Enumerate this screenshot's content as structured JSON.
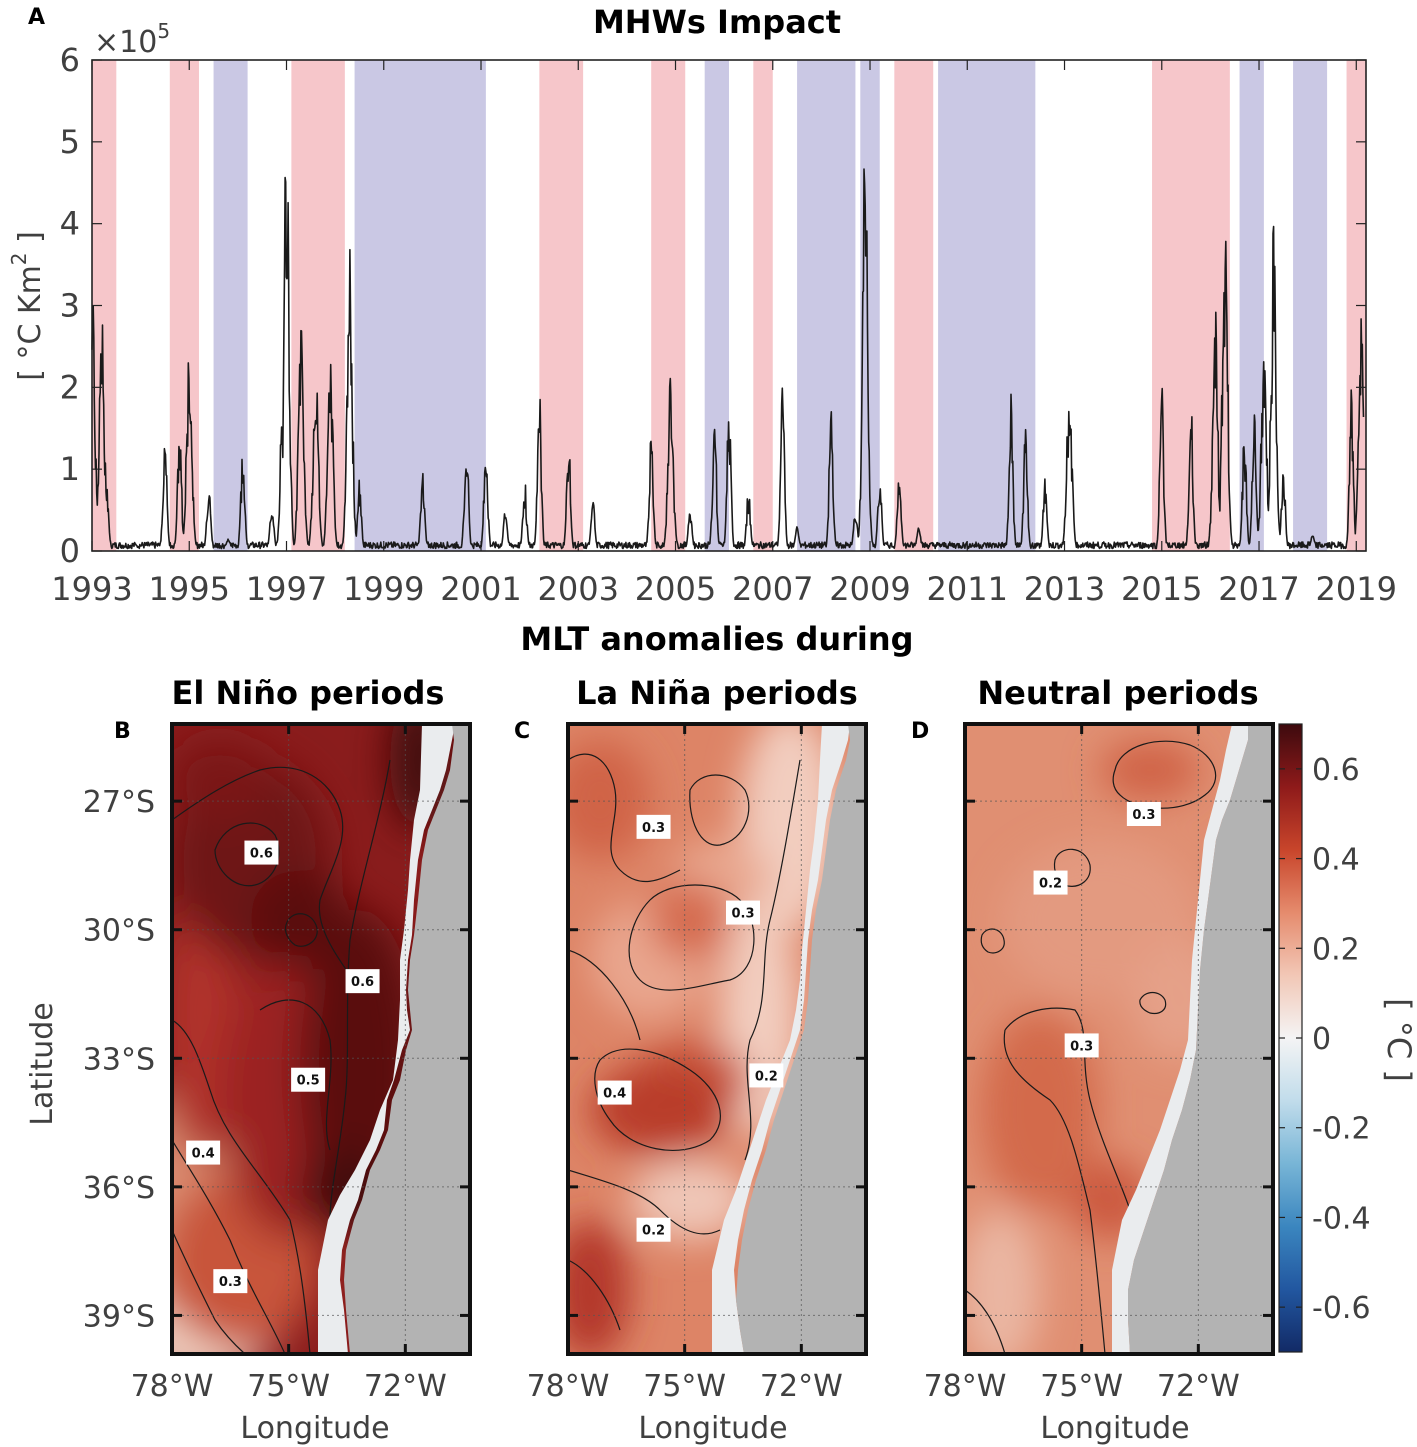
{
  "chart_data": [
    {
      "panel": "A",
      "type": "line",
      "title": "MHWs Impact",
      "ylabel": "[ °C Km² ]",
      "ylabel_parts": {
        "open": "[ °C Km",
        "sup": "2",
        "close": " ]"
      },
      "y_multiplier": {
        "base": "×10",
        "exp": "5"
      },
      "xlim": [
        1993,
        2019.2
      ],
      "ylim": [
        0,
        6
      ],
      "xticks": [
        "1993",
        "1995",
        "1997",
        "1999",
        "2001",
        "2003",
        "2005",
        "2007",
        "2009",
        "2011",
        "2013",
        "2015",
        "2017",
        "2019"
      ],
      "yticks": [
        "0",
        "1",
        "2",
        "3",
        "4",
        "5",
        "6"
      ],
      "colors": {
        "el_nino": "#f6c6ca",
        "la_nina": "#cac8e4",
        "line_neutral": "#1a1a1a",
        "line_el_nino": "#6b1018",
        "line_la_nina": "#1a1a5e"
      },
      "el_nino_periods": [
        [
          1993.0,
          1993.5
        ],
        [
          1994.6,
          1995.2
        ],
        [
          1997.1,
          1998.2
        ],
        [
          2002.2,
          2003.1
        ],
        [
          2004.5,
          2005.2
        ],
        [
          2006.6,
          2007.0
        ],
        [
          2009.5,
          2010.3
        ],
        [
          2014.8,
          2016.4
        ],
        [
          2018.8,
          2019.2
        ]
      ],
      "la_nina_periods": [
        [
          1995.5,
          1996.2
        ],
        [
          1998.4,
          2001.1
        ],
        [
          2005.6,
          2006.1
        ],
        [
          2007.5,
          2008.7
        ],
        [
          2008.8,
          2009.2
        ],
        [
          2010.4,
          2012.4
        ],
        [
          2016.6,
          2017.1
        ],
        [
          2017.7,
          2018.4
        ]
      ],
      "peaks": [
        {
          "x": 1993.0,
          "y": 3.5
        },
        {
          "x": 1993.2,
          "y": 2.7
        },
        {
          "x": 1993.3,
          "y": 0.8
        },
        {
          "x": 1993.9,
          "y": 0.08
        },
        {
          "x": 1994.5,
          "y": 1.5
        },
        {
          "x": 1994.8,
          "y": 1.5
        },
        {
          "x": 1995.0,
          "y": 2.4
        },
        {
          "x": 1995.4,
          "y": 0.8
        },
        {
          "x": 1995.8,
          "y": 0.15
        },
        {
          "x": 1996.1,
          "y": 1.25
        },
        {
          "x": 1996.7,
          "y": 0.6
        },
        {
          "x": 1996.9,
          "y": 1.5
        },
        {
          "x": 1997.0,
          "y": 5.05
        },
        {
          "x": 1997.3,
          "y": 2.8
        },
        {
          "x": 1997.6,
          "y": 2.2
        },
        {
          "x": 1997.9,
          "y": 2.3
        },
        {
          "x": 1998.3,
          "y": 3.45
        },
        {
          "x": 1998.5,
          "y": 0.8
        },
        {
          "x": 1999.1,
          "y": 0.05
        },
        {
          "x": 1999.8,
          "y": 0.95
        },
        {
          "x": 2000.7,
          "y": 1.5
        },
        {
          "x": 2001.1,
          "y": 1.3
        },
        {
          "x": 2001.5,
          "y": 0.5
        },
        {
          "x": 2001.9,
          "y": 0.8
        },
        {
          "x": 2002.2,
          "y": 2.0
        },
        {
          "x": 2002.8,
          "y": 1.3
        },
        {
          "x": 2003.3,
          "y": 0.6
        },
        {
          "x": 2004.5,
          "y": 1.5
        },
        {
          "x": 2004.9,
          "y": 2.1
        },
        {
          "x": 2005.3,
          "y": 0.5
        },
        {
          "x": 2005.8,
          "y": 1.65
        },
        {
          "x": 2006.1,
          "y": 1.8
        },
        {
          "x": 2006.5,
          "y": 0.7
        },
        {
          "x": 2007.2,
          "y": 2.0
        },
        {
          "x": 2007.5,
          "y": 0.3
        },
        {
          "x": 2008.2,
          "y": 1.75
        },
        {
          "x": 2008.7,
          "y": 0.5
        },
        {
          "x": 2008.9,
          "y": 4.85
        },
        {
          "x": 2009.2,
          "y": 0.9
        },
        {
          "x": 2009.6,
          "y": 0.95
        },
        {
          "x": 2010.0,
          "y": 0.3
        },
        {
          "x": 2011.9,
          "y": 1.8
        },
        {
          "x": 2012.2,
          "y": 1.4
        },
        {
          "x": 2012.6,
          "y": 0.8
        },
        {
          "x": 2013.1,
          "y": 2.05
        },
        {
          "x": 2015.0,
          "y": 1.95
        },
        {
          "x": 2015.6,
          "y": 1.8
        },
        {
          "x": 2016.1,
          "y": 2.7
        },
        {
          "x": 2016.3,
          "y": 4.0
        },
        {
          "x": 2016.7,
          "y": 1.45
        },
        {
          "x": 2016.9,
          "y": 1.75
        },
        {
          "x": 2017.1,
          "y": 2.5
        },
        {
          "x": 2017.3,
          "y": 3.7
        },
        {
          "x": 2017.5,
          "y": 1.0
        },
        {
          "x": 2018.1,
          "y": 0.2
        },
        {
          "x": 2018.9,
          "y": 1.9
        },
        {
          "x": 2019.1,
          "y": 2.9
        }
      ]
    },
    {
      "panel": "B",
      "type": "heatmap",
      "title": "El Niño periods",
      "xlabel": "Longitude",
      "ylabel": "Latitude",
      "xticks": [
        "78°W",
        "75°W",
        "72°W"
      ],
      "yticks": [
        "27°S",
        "30°S",
        "33°S",
        "36°S",
        "39°S"
      ],
      "contour_labels": [
        {
          "text": "0.6",
          "lon": -75.7,
          "lat": -28.2
        },
        {
          "text": "0.6",
          "lon": -73.1,
          "lat": -31.2
        },
        {
          "text": "0.5",
          "lon": -74.5,
          "lat": -33.5
        },
        {
          "text": "0.4",
          "lon": -77.2,
          "lat": -35.2
        },
        {
          "text": "0.3",
          "lon": -76.5,
          "lat": -38.2
        }
      ]
    },
    {
      "panel": "C",
      "type": "heatmap",
      "title": "La Niña periods",
      "xlabel": "Longitude",
      "xticks": [
        "78°W",
        "75°W",
        "72°W"
      ],
      "contour_labels": [
        {
          "text": "0.3",
          "lon": -75.8,
          "lat": -27.6
        },
        {
          "text": "0.3",
          "lon": -73.5,
          "lat": -29.6
        },
        {
          "text": "0.2",
          "lon": -72.9,
          "lat": -33.4
        },
        {
          "text": "0.4",
          "lon": -76.8,
          "lat": -33.8
        },
        {
          "text": "0.2",
          "lon": -75.8,
          "lat": -37.0
        }
      ]
    },
    {
      "panel": "D",
      "type": "heatmap",
      "title": "Neutral periods",
      "xlabel": "Longitude",
      "xticks": [
        "78°W",
        "75°W",
        "72°W"
      ],
      "contour_labels": [
        {
          "text": "0.3",
          "lon": -73.4,
          "lat": -27.3
        },
        {
          "text": "0.2",
          "lon": -75.8,
          "lat": -28.9
        },
        {
          "text": "0.3",
          "lon": -75.0,
          "lat": -32.7
        }
      ],
      "colorbar": {
        "label": "[ °C ]",
        "range": [
          -0.7,
          0.7
        ],
        "ticks": [
          "0.6",
          "0.4",
          "0.2",
          "0",
          "-0.2",
          "-0.4",
          "-0.6"
        ],
        "colors": [
          "#3d0a0e",
          "#8e1a1a",
          "#c8452b",
          "#e58b6d",
          "#f2c7b6",
          "#f4f4f4",
          "#c1dceb",
          "#78b5d6",
          "#3b86bf",
          "#2257a0",
          "#122a66"
        ]
      }
    }
  ],
  "figure": {
    "section_title": "MLT anomalies during",
    "panel_letters": [
      "A",
      "B",
      "C",
      "D"
    ],
    "colors": {
      "land": "#b3b3b3",
      "coast_gap": "#eaecee"
    }
  }
}
